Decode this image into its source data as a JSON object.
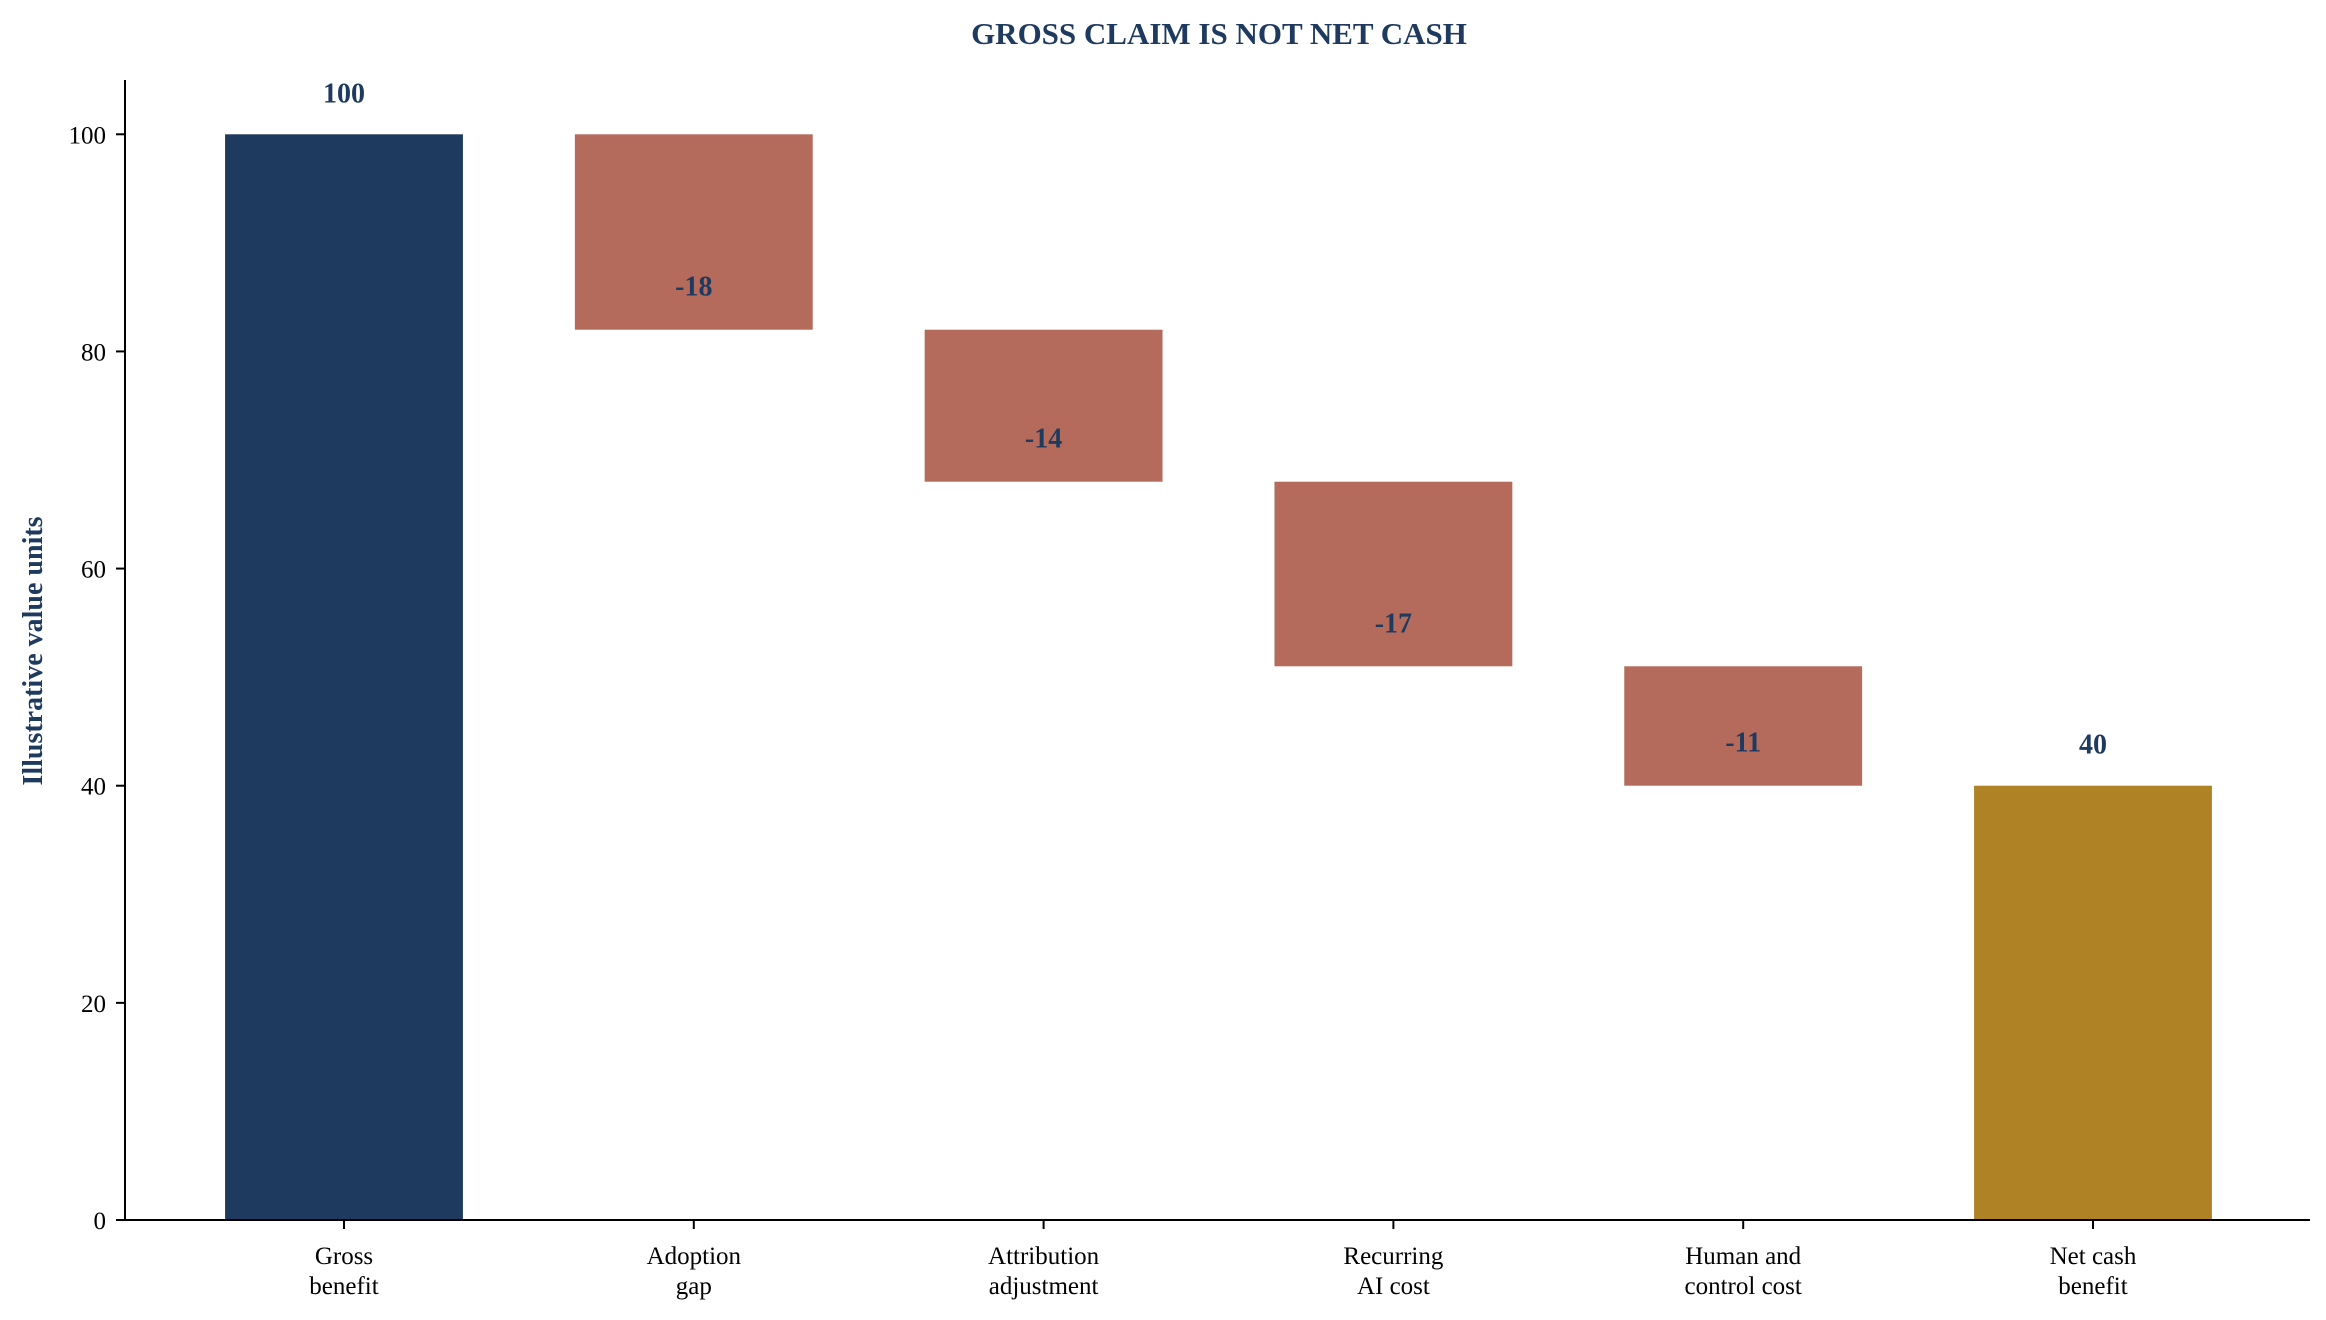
{
  "chart_data": {
    "type": "bar",
    "subtype": "waterfall",
    "title": "GROSS CLAIM IS NOT NET CASH",
    "xlabel": "",
    "ylabel": "Illustrative value units",
    "ylim": [
      0,
      105
    ],
    "yticks": [
      "0",
      "20",
      "40",
      "60",
      "80",
      "100"
    ],
    "grid": false,
    "categories": [
      [
        "Gross",
        "benefit"
      ],
      [
        "Adoption",
        "gap"
      ],
      [
        "Attribution",
        "adjustment"
      ],
      [
        "Recurring",
        "AI cost"
      ],
      [
        "Human and",
        "control cost"
      ],
      [
        "Net cash",
        "benefit"
      ]
    ],
    "steps": [
      {
        "kind": "total",
        "value": 100,
        "label": "100"
      },
      {
        "kind": "delta",
        "value": -18,
        "label": "-18"
      },
      {
        "kind": "delta",
        "value": -14,
        "label": "-14"
      },
      {
        "kind": "delta",
        "value": -17,
        "label": "-17"
      },
      {
        "kind": "delta",
        "value": -11,
        "label": "-11"
      },
      {
        "kind": "total",
        "value": 40,
        "label": "40"
      }
    ],
    "colors": {
      "start_total": "#1f3a5f",
      "decrease": "#b46b5c",
      "end_total": "#b08226",
      "title": "#1f3a5f",
      "label": "#1f3a5f"
    }
  }
}
